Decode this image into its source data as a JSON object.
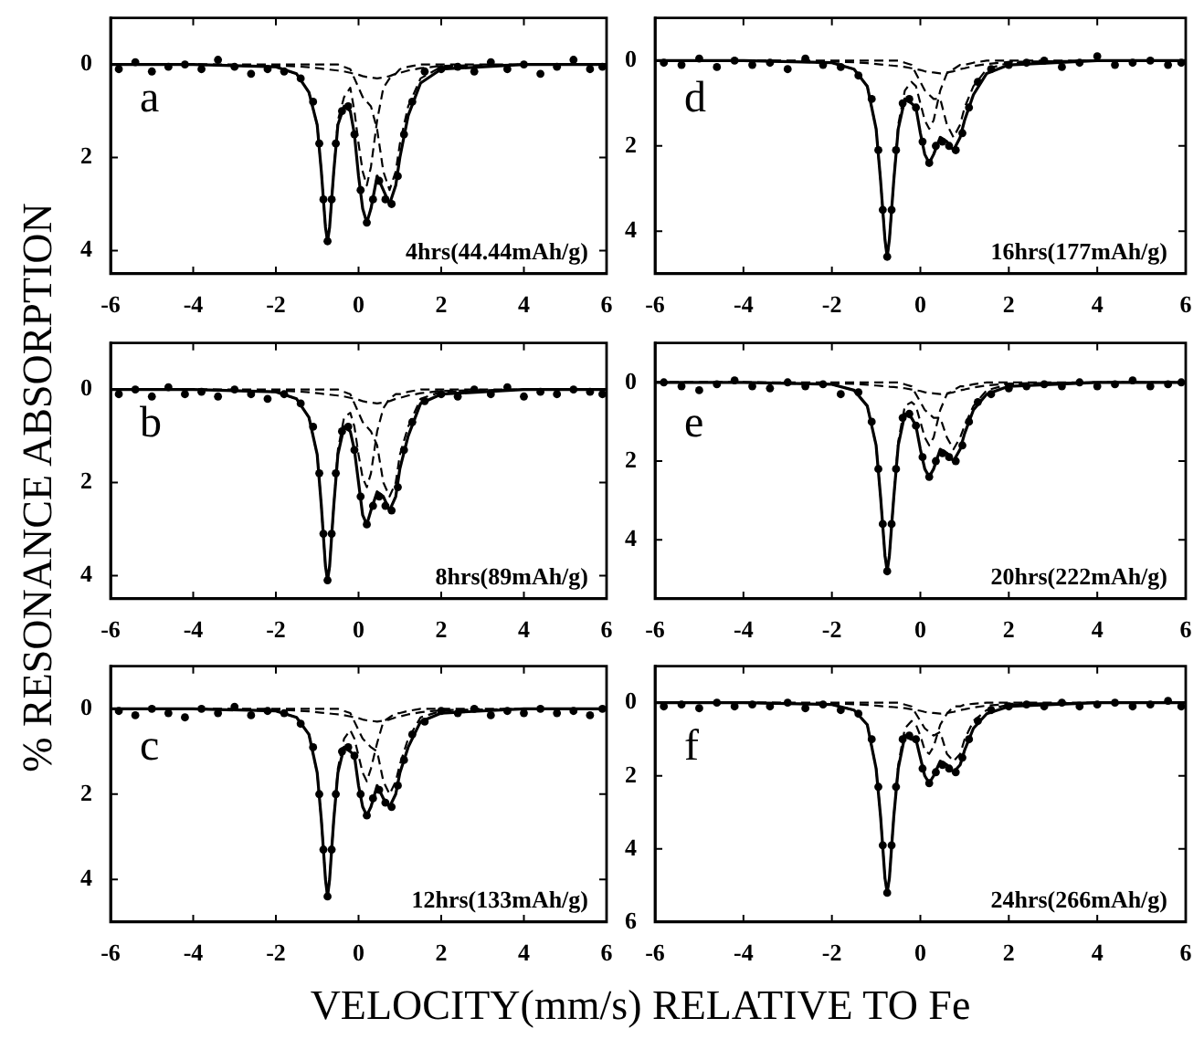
{
  "chart_data": [
    {
      "type": "line",
      "annotations": [
        "a",
        "4hrs(44.44mAh/g)"
      ],
      "xlim": [
        -6,
        6
      ],
      "xticks": [
        -6,
        -4,
        -2,
        0,
        2,
        4,
        6
      ],
      "ylim": [
        4.5,
        -1
      ],
      "yticks": [
        0,
        2,
        4
      ],
      "x": [
        -6,
        -4,
        -2,
        -1.5,
        -1.2,
        -1,
        -0.9,
        -0.8,
        -0.75,
        -0.7,
        -0.6,
        -0.5,
        -0.35,
        -0.2,
        -0.1,
        0,
        0.1,
        0.2,
        0.3,
        0.45,
        0.6,
        0.75,
        0.9,
        1,
        1.2,
        1.5,
        2,
        4,
        6
      ],
      "series": [
        {
          "type": "scatter",
          "marker": "circle",
          "color": "#000000",
          "x": [
            -5.8,
            -5.4,
            -5,
            -4.6,
            -4.2,
            -3.8,
            -3.4,
            -3,
            -2.6,
            -2.2,
            -1.8,
            -1.4,
            -1.1,
            -0.95,
            -0.85,
            -0.75,
            -0.65,
            -0.55,
            -0.4,
            -0.25,
            -0.1,
            0.05,
            0.2,
            0.35,
            0.5,
            0.65,
            0.8,
            0.95,
            1.1,
            1.3,
            1.6,
            2,
            2.4,
            2.8,
            3.2,
            3.6,
            4,
            4.4,
            4.8,
            5.2,
            5.6,
            5.9
          ],
          "values": [
            0.1,
            -0.05,
            0.15,
            0.05,
            0,
            0.1,
            -0.1,
            0.05,
            0.2,
            0.1,
            0.15,
            0.3,
            0.8,
            1.7,
            2.9,
            3.8,
            2.9,
            1.7,
            1.0,
            0.9,
            1.5,
            2.7,
            3.4,
            2.9,
            2.5,
            2.9,
            3.0,
            2.4,
            1.5,
            0.8,
            0.15,
            0.1,
            0.05,
            0.15,
            -0.05,
            0.1,
            0,
            0.2,
            0.05,
            -0.1,
            0.1,
            0.05
          ]
        },
        {
          "line_style": "solid",
          "marker": "none",
          "color": "#000000",
          "values": [
            0,
            0,
            0.05,
            0.2,
            0.6,
            1.3,
            2.3,
            3.5,
            3.8,
            3.5,
            2.3,
            1.3,
            0.9,
            1.0,
            1.5,
            2.4,
            3.1,
            3.4,
            3.1,
            2.4,
            2.7,
            3.0,
            2.6,
            2.0,
            1.1,
            0.4,
            0.1,
            0,
            0
          ]
        },
        {
          "line_style": "dashed",
          "marker": "none",
          "color": "#000000",
          "values": [
            0,
            0,
            0.05,
            0.2,
            0.6,
            1.3,
            2.3,
            3.5,
            3.8,
            3.5,
            2.3,
            1.2,
            0.7,
            0.5,
            1.0,
            1.7,
            2.3,
            2.6,
            2.2,
            1.2,
            0.5,
            0.3,
            0.2,
            0.1,
            0.05,
            0,
            0,
            0,
            0
          ]
        },
        {
          "line_style": "dashed",
          "marker": "none",
          "color": "#000000",
          "values": [
            0,
            0,
            0,
            0,
            0,
            0,
            0,
            0,
            0,
            0,
            0,
            0,
            0.05,
            0.1,
            0.3,
            0.5,
            0.7,
            0.8,
            0.9,
            1.4,
            2.3,
            2.7,
            2.3,
            1.7,
            0.9,
            0.3,
            0.05,
            0,
            0
          ]
        },
        {
          "line_style": "dashed",
          "marker": "none",
          "color": "#000000",
          "values": [
            0,
            0,
            0.02,
            0.04,
            0.06,
            0.08,
            0.09,
            0.1,
            0.1,
            0.11,
            0.12,
            0.13,
            0.15,
            0.18,
            0.2,
            0.22,
            0.25,
            0.27,
            0.28,
            0.3,
            0.28,
            0.25,
            0.2,
            0.18,
            0.13,
            0.08,
            0.03,
            0,
            0
          ]
        }
      ]
    },
    {
      "type": "line",
      "annotations": [
        "d",
        "16hrs(177mAh/g)"
      ],
      "xlim": [
        -6,
        6
      ],
      "xticks": [
        -6,
        -4,
        -2,
        0,
        2,
        4,
        6
      ],
      "ylim": [
        5,
        -1
      ],
      "yticks": [
        0,
        2,
        4
      ],
      "x": [
        -6,
        -4,
        -2,
        -1.5,
        -1.2,
        -1,
        -0.9,
        -0.8,
        -0.75,
        -0.7,
        -0.6,
        -0.5,
        -0.35,
        -0.2,
        -0.1,
        0,
        0.1,
        0.2,
        0.3,
        0.45,
        0.6,
        0.75,
        0.9,
        1,
        1.2,
        1.5,
        2,
        4,
        6
      ],
      "series": [
        {
          "type": "scatter",
          "marker": "circle",
          "color": "#000000",
          "x": [
            -5.8,
            -5.4,
            -5,
            -4.6,
            -4.2,
            -3.8,
            -3.4,
            -3,
            -2.6,
            -2.2,
            -1.8,
            -1.4,
            -1.1,
            -0.95,
            -0.85,
            -0.75,
            -0.65,
            -0.55,
            -0.4,
            -0.25,
            -0.1,
            0.05,
            0.2,
            0.35,
            0.5,
            0.65,
            0.8,
            0.95,
            1.1,
            1.3,
            1.6,
            2,
            2.4,
            2.8,
            3.2,
            3.6,
            4,
            4.4,
            4.8,
            5.2,
            5.6,
            5.9
          ],
          "values": [
            0.05,
            0.1,
            -0.05,
            0.15,
            0,
            0.1,
            0.05,
            0.2,
            -0.05,
            0.1,
            0.15,
            0.35,
            0.9,
            2.1,
            3.5,
            4.6,
            3.5,
            2.1,
            1.0,
            0.9,
            1.1,
            1.9,
            2.4,
            2.0,
            1.9,
            2.0,
            2.1,
            1.7,
            1.1,
            0.5,
            0.2,
            0.1,
            0.05,
            0,
            0.15,
            0.05,
            -0.1,
            0.1,
            0.05,
            0,
            0.1,
            0.05
          ]
        },
        {
          "line_style": "solid",
          "marker": "none",
          "color": "#000000",
          "values": [
            0,
            0,
            0.05,
            0.2,
            0.6,
            1.6,
            2.8,
            4.2,
            4.6,
            4.2,
            2.8,
            1.6,
            0.9,
            1.0,
            1.1,
            1.7,
            2.2,
            2.4,
            2.2,
            1.8,
            1.9,
            2.1,
            1.8,
            1.4,
            0.8,
            0.3,
            0.1,
            0,
            0
          ]
        },
        {
          "line_style": "dashed",
          "marker": "none",
          "color": "#000000",
          "values": [
            0,
            0,
            0.05,
            0.2,
            0.6,
            1.6,
            2.8,
            4.2,
            4.6,
            4.2,
            2.8,
            1.5,
            0.7,
            0.5,
            0.6,
            1.0,
            1.4,
            1.6,
            1.4,
            0.7,
            0.3,
            0.2,
            0.1,
            0.1,
            0.05,
            0,
            0,
            0,
            0
          ]
        },
        {
          "line_style": "dashed",
          "marker": "none",
          "color": "#000000",
          "values": [
            0,
            0,
            0,
            0,
            0,
            0,
            0,
            0,
            0,
            0,
            0,
            0,
            0.05,
            0.1,
            0.3,
            0.5,
            0.7,
            0.8,
            0.9,
            0.9,
            1.5,
            1.8,
            1.5,
            1.1,
            0.6,
            0.2,
            0.05,
            0,
            0
          ]
        },
        {
          "line_style": "dashed",
          "marker": "none",
          "color": "#000000",
          "values": [
            0,
            0,
            0.02,
            0.04,
            0.06,
            0.08,
            0.09,
            0.1,
            0.1,
            0.11,
            0.12,
            0.13,
            0.15,
            0.18,
            0.2,
            0.22,
            0.25,
            0.27,
            0.28,
            0.3,
            0.28,
            0.25,
            0.2,
            0.18,
            0.13,
            0.08,
            0.03,
            0,
            0
          ]
        }
      ]
    },
    {
      "type": "line",
      "ylabel": "% RESONANCE ABSORPTION",
      "annotations": [
        "b",
        "8hrs(89mAh/g)"
      ],
      "xlim": [
        -6,
        6
      ],
      "xticks": [
        -6,
        -4,
        -2,
        0,
        2,
        4,
        6
      ],
      "ylim": [
        4.5,
        -1
      ],
      "yticks": [
        0,
        2,
        4
      ],
      "x": [
        -6,
        -4,
        -2,
        -1.5,
        -1.2,
        -1,
        -0.9,
        -0.8,
        -0.75,
        -0.7,
        -0.6,
        -0.5,
        -0.35,
        -0.2,
        -0.1,
        0,
        0.1,
        0.2,
        0.3,
        0.45,
        0.6,
        0.75,
        0.9,
        1,
        1.2,
        1.5,
        2,
        4,
        6
      ],
      "series": [
        {
          "type": "scatter",
          "marker": "circle",
          "color": "#000000",
          "x": [
            -5.8,
            -5.4,
            -5,
            -4.6,
            -4.2,
            -3.8,
            -3.4,
            -3,
            -2.6,
            -2.2,
            -1.8,
            -1.4,
            -1.1,
            -0.95,
            -0.85,
            -0.75,
            -0.65,
            -0.55,
            -0.4,
            -0.25,
            -0.1,
            0.05,
            0.2,
            0.35,
            0.5,
            0.65,
            0.8,
            0.95,
            1.1,
            1.3,
            1.6,
            2,
            2.4,
            2.8,
            3.2,
            3.6,
            4,
            4.4,
            4.8,
            5.2,
            5.6,
            5.9
          ],
          "values": [
            0.1,
            0,
            0.15,
            -0.05,
            0.1,
            0.05,
            0.15,
            0,
            0.1,
            0.2,
            0.1,
            0.3,
            0.8,
            1.8,
            3.1,
            4.1,
            3.1,
            1.8,
            0.9,
            0.8,
            1.3,
            2.3,
            2.9,
            2.5,
            2.3,
            2.5,
            2.6,
            2.1,
            1.3,
            0.7,
            0.25,
            0.1,
            0.15,
            0,
            0.1,
            -0.05,
            0.15,
            0.05,
            0.1,
            0,
            0.05,
            0.1
          ]
        },
        {
          "line_style": "solid",
          "marker": "none",
          "color": "#000000",
          "values": [
            0,
            0,
            0.05,
            0.2,
            0.6,
            1.4,
            2.5,
            3.8,
            4.1,
            3.8,
            2.5,
            1.4,
            0.8,
            0.9,
            1.3,
            2.0,
            2.7,
            2.9,
            2.6,
            2.2,
            2.3,
            2.6,
            2.3,
            1.7,
            1.0,
            0.3,
            0.1,
            0,
            0
          ]
        },
        {
          "line_style": "dashed",
          "marker": "none",
          "color": "#000000",
          "values": [
            0,
            0,
            0.05,
            0.2,
            0.6,
            1.4,
            2.5,
            3.8,
            4.1,
            3.8,
            2.5,
            1.3,
            0.6,
            0.5,
            0.8,
            1.4,
            1.9,
            2.1,
            1.8,
            0.9,
            0.4,
            0.2,
            0.1,
            0.1,
            0.05,
            0,
            0,
            0,
            0
          ]
        },
        {
          "line_style": "dashed",
          "marker": "none",
          "color": "#000000",
          "values": [
            0,
            0,
            0,
            0,
            0,
            0,
            0,
            0,
            0,
            0,
            0,
            0,
            0.05,
            0.1,
            0.3,
            0.5,
            0.7,
            0.8,
            0.9,
            1.2,
            2.0,
            2.3,
            2.0,
            1.4,
            0.8,
            0.2,
            0.05,
            0,
            0
          ]
        },
        {
          "line_style": "dashed",
          "marker": "none",
          "color": "#000000",
          "values": [
            0,
            0,
            0.02,
            0.04,
            0.06,
            0.08,
            0.09,
            0.1,
            0.1,
            0.11,
            0.12,
            0.13,
            0.15,
            0.18,
            0.2,
            0.22,
            0.25,
            0.27,
            0.28,
            0.3,
            0.28,
            0.25,
            0.2,
            0.18,
            0.13,
            0.08,
            0.03,
            0,
            0
          ]
        }
      ]
    },
    {
      "type": "line",
      "annotations": [
        "e",
        "20hrs(222mAh/g)"
      ],
      "xlim": [
        -6,
        6
      ],
      "xticks": [
        -6,
        -4,
        -2,
        0,
        2,
        4,
        6
      ],
      "ylim": [
        5.5,
        -1
      ],
      "yticks": [
        0,
        2,
        4
      ],
      "x": [
        -6,
        -4,
        -2,
        -1.5,
        -1.2,
        -1,
        -0.9,
        -0.8,
        -0.75,
        -0.7,
        -0.6,
        -0.5,
        -0.35,
        -0.2,
        -0.1,
        0,
        0.1,
        0.2,
        0.3,
        0.45,
        0.6,
        0.75,
        0.9,
        1,
        1.2,
        1.5,
        2,
        4,
        6
      ],
      "series": [
        {
          "type": "scatter",
          "marker": "circle",
          "color": "#000000",
          "x": [
            -5.8,
            -5.4,
            -5,
            -4.6,
            -4.2,
            -3.8,
            -3.4,
            -3,
            -2.6,
            -2.2,
            -1.8,
            -1.4,
            -1.1,
            -0.95,
            -0.85,
            -0.75,
            -0.65,
            -0.55,
            -0.4,
            -0.25,
            -0.1,
            0.05,
            0.2,
            0.35,
            0.5,
            0.65,
            0.8,
            0.95,
            1.1,
            1.3,
            1.6,
            2,
            2.4,
            2.8,
            3.2,
            3.6,
            4,
            4.4,
            4.8,
            5.2,
            5.6,
            5.9
          ],
          "values": [
            0,
            0.1,
            0.2,
            0.05,
            -0.05,
            0.1,
            0.15,
            0,
            0.1,
            0.05,
            0.3,
            0.25,
            1.0,
            2.2,
            3.6,
            4.8,
            3.6,
            2.2,
            0.9,
            0.8,
            1.1,
            1.9,
            2.4,
            2.0,
            1.8,
            1.9,
            2.0,
            1.6,
            1.0,
            0.5,
            0.3,
            0.15,
            0.1,
            0.05,
            0.1,
            0,
            0.1,
            0.05,
            -0.05,
            0.1,
            0.05,
            0
          ]
        },
        {
          "line_style": "solid",
          "marker": "none",
          "color": "#000000",
          "values": [
            0,
            0,
            0.05,
            0.2,
            0.6,
            1.6,
            2.9,
            4.4,
            4.8,
            4.4,
            2.9,
            1.6,
            0.8,
            0.9,
            1.1,
            1.7,
            2.2,
            2.4,
            2.2,
            1.7,
            1.8,
            2.0,
            1.7,
            1.3,
            0.7,
            0.3,
            0.1,
            0,
            0
          ]
        },
        {
          "line_style": "dashed",
          "marker": "none",
          "color": "#000000",
          "values": [
            0,
            0,
            0.05,
            0.2,
            0.6,
            1.6,
            2.9,
            4.4,
            4.8,
            4.4,
            2.9,
            1.5,
            0.6,
            0.5,
            0.6,
            1.0,
            1.4,
            1.6,
            1.4,
            0.7,
            0.3,
            0.2,
            0.1,
            0.1,
            0.05,
            0,
            0,
            0,
            0
          ]
        },
        {
          "line_style": "dashed",
          "marker": "none",
          "color": "#000000",
          "values": [
            0,
            0,
            0,
            0,
            0,
            0,
            0,
            0,
            0,
            0,
            0,
            0,
            0.05,
            0.1,
            0.3,
            0.5,
            0.7,
            0.8,
            0.9,
            0.9,
            1.4,
            1.7,
            1.4,
            1.1,
            0.6,
            0.2,
            0.05,
            0,
            0
          ]
        },
        {
          "line_style": "dashed",
          "marker": "none",
          "color": "#000000",
          "values": [
            0,
            0,
            0.02,
            0.04,
            0.06,
            0.08,
            0.09,
            0.1,
            0.1,
            0.11,
            0.12,
            0.13,
            0.15,
            0.18,
            0.2,
            0.22,
            0.25,
            0.27,
            0.28,
            0.3,
            0.28,
            0.25,
            0.2,
            0.18,
            0.13,
            0.08,
            0.03,
            0,
            0
          ]
        }
      ]
    },
    {
      "type": "line",
      "xlabel": "VELOCITY(mm/s) RELATIVE TO Fe",
      "annotations": [
        "c",
        "12hrs(133mAh/g)"
      ],
      "xlim": [
        -6,
        6
      ],
      "xticks": [
        -6,
        -4,
        -2,
        0,
        2,
        4,
        6
      ],
      "ylim": [
        5,
        -1
      ],
      "yticks": [
        0,
        2,
        4
      ],
      "x": [
        -6,
        -4,
        -2,
        -1.5,
        -1.2,
        -1,
        -0.9,
        -0.8,
        -0.75,
        -0.7,
        -0.6,
        -0.5,
        -0.35,
        -0.2,
        -0.1,
        0,
        0.1,
        0.2,
        0.3,
        0.45,
        0.6,
        0.75,
        0.9,
        1,
        1.2,
        1.5,
        2,
        4,
        6
      ],
      "series": [
        {
          "type": "scatter",
          "marker": "circle",
          "color": "#000000",
          "x": [
            -5.8,
            -5.4,
            -5,
            -4.6,
            -4.2,
            -3.8,
            -3.4,
            -3,
            -2.6,
            -2.2,
            -1.8,
            -1.4,
            -1.1,
            -0.95,
            -0.85,
            -0.75,
            -0.65,
            -0.55,
            -0.4,
            -0.25,
            -0.1,
            0.05,
            0.2,
            0.35,
            0.5,
            0.65,
            0.8,
            0.95,
            1.1,
            1.3,
            1.6,
            2,
            2.4,
            2.8,
            3.2,
            3.6,
            4,
            4.4,
            4.8,
            5.2,
            5.6,
            5.9
          ],
          "values": [
            0.05,
            0.15,
            0,
            0.1,
            0.2,
            0,
            0.1,
            -0.05,
            0.15,
            0.05,
            0.1,
            0.35,
            0.9,
            2.0,
            3.3,
            4.4,
            3.3,
            2.0,
            1.0,
            0.9,
            1.1,
            2.0,
            2.5,
            2.1,
            1.9,
            2.2,
            2.3,
            1.8,
            1.2,
            0.6,
            0.3,
            0.05,
            0.1,
            0,
            0.15,
            0.05,
            0.1,
            0,
            0.1,
            0.05,
            0.15,
            0
          ]
        },
        {
          "line_style": "solid",
          "marker": "none",
          "color": "#000000",
          "values": [
            0,
            0,
            0.05,
            0.2,
            0.6,
            1.5,
            2.6,
            4.0,
            4.4,
            4.0,
            2.6,
            1.5,
            0.9,
            1.0,
            1.1,
            1.8,
            2.3,
            2.5,
            2.3,
            1.8,
            2.1,
            2.3,
            2.0,
            1.5,
            0.9,
            0.3,
            0.1,
            0,
            0
          ]
        },
        {
          "line_style": "dashed",
          "marker": "none",
          "color": "#000000",
          "values": [
            0,
            0,
            0.05,
            0.2,
            0.6,
            1.5,
            2.6,
            4.0,
            4.4,
            4.0,
            2.6,
            1.4,
            0.7,
            0.5,
            0.7,
            1.1,
            1.5,
            1.7,
            1.4,
            0.8,
            0.3,
            0.2,
            0.1,
            0.1,
            0.05,
            0,
            0,
            0,
            0
          ]
        },
        {
          "line_style": "dashed",
          "marker": "none",
          "color": "#000000",
          "values": [
            0,
            0,
            0,
            0,
            0,
            0,
            0,
            0,
            0,
            0,
            0,
            0,
            0.05,
            0.1,
            0.3,
            0.5,
            0.7,
            0.8,
            0.9,
            1.0,
            1.7,
            2.0,
            1.7,
            1.3,
            0.7,
            0.2,
            0.05,
            0,
            0
          ]
        },
        {
          "line_style": "dashed",
          "marker": "none",
          "color": "#000000",
          "values": [
            0,
            0,
            0.02,
            0.04,
            0.06,
            0.08,
            0.09,
            0.1,
            0.1,
            0.11,
            0.12,
            0.13,
            0.15,
            0.18,
            0.2,
            0.22,
            0.25,
            0.27,
            0.28,
            0.3,
            0.28,
            0.25,
            0.2,
            0.18,
            0.13,
            0.08,
            0.03,
            0,
            0
          ]
        }
      ]
    },
    {
      "type": "line",
      "annotations": [
        "f",
        "24hrs(266mAh/g)"
      ],
      "xlim": [
        -6,
        6
      ],
      "xticks": [
        -6,
        -4,
        -2,
        0,
        2,
        4,
        6
      ],
      "ylim": [
        6,
        -1
      ],
      "yticks": [
        0,
        2,
        4,
        6
      ],
      "x": [
        -6,
        -4,
        -2,
        -1.5,
        -1.2,
        -1,
        -0.9,
        -0.8,
        -0.75,
        -0.7,
        -0.6,
        -0.5,
        -0.35,
        -0.2,
        -0.1,
        0,
        0.1,
        0.2,
        0.3,
        0.45,
        0.6,
        0.75,
        0.9,
        1,
        1.2,
        1.5,
        2,
        4,
        6
      ],
      "series": [
        {
          "type": "scatter",
          "marker": "circle",
          "color": "#000000",
          "x": [
            -5.8,
            -5.4,
            -5,
            -4.6,
            -4.2,
            -3.8,
            -3.4,
            -3,
            -2.6,
            -2.2,
            -1.8,
            -1.4,
            -1.1,
            -0.95,
            -0.85,
            -0.75,
            -0.65,
            -0.55,
            -0.4,
            -0.25,
            -0.1,
            0.05,
            0.2,
            0.35,
            0.5,
            0.65,
            0.8,
            0.95,
            1.1,
            1.3,
            1.6,
            2,
            2.4,
            2.8,
            3.2,
            3.6,
            4,
            4.4,
            4.8,
            5.2,
            5.6,
            5.9
          ],
          "values": [
            0.1,
            0.05,
            0.15,
            0,
            0.1,
            0.05,
            0.1,
            0,
            0.15,
            0.05,
            0.2,
            0.3,
            1.0,
            2.3,
            3.9,
            5.2,
            3.9,
            2.3,
            1.0,
            0.9,
            1.0,
            1.8,
            2.2,
            1.9,
            1.7,
            1.8,
            1.9,
            1.5,
            1.0,
            0.5,
            0.2,
            0.1,
            0.05,
            0.1,
            0,
            0.1,
            0.05,
            0,
            0.1,
            0.05,
            -0.05,
            0.1
          ]
        },
        {
          "line_style": "solid",
          "marker": "none",
          "color": "#000000",
          "values": [
            0,
            0,
            0.05,
            0.2,
            0.6,
            1.8,
            3.1,
            4.8,
            5.2,
            4.8,
            3.1,
            1.8,
            0.9,
            1.0,
            1.0,
            1.5,
            2.0,
            2.2,
            2.0,
            1.6,
            1.7,
            1.9,
            1.7,
            1.3,
            0.7,
            0.3,
            0.1,
            0,
            0
          ]
        },
        {
          "line_style": "dashed",
          "marker": "none",
          "color": "#000000",
          "values": [
            0,
            0,
            0.05,
            0.2,
            0.6,
            1.8,
            3.1,
            4.8,
            5.2,
            4.8,
            3.1,
            1.7,
            0.7,
            0.5,
            0.6,
            0.9,
            1.3,
            1.4,
            1.2,
            0.6,
            0.3,
            0.1,
            0.1,
            0.05,
            0.03,
            0,
            0,
            0,
            0
          ]
        },
        {
          "line_style": "dashed",
          "marker": "none",
          "color": "#000000",
          "values": [
            0,
            0,
            0,
            0,
            0,
            0,
            0,
            0,
            0,
            0,
            0,
            0,
            0.05,
            0.1,
            0.3,
            0.5,
            0.7,
            0.8,
            0.9,
            0.8,
            1.4,
            1.6,
            1.4,
            1.0,
            0.5,
            0.2,
            0.05,
            0,
            0
          ]
        },
        {
          "line_style": "dashed",
          "marker": "none",
          "color": "#000000",
          "values": [
            0,
            0,
            0.02,
            0.04,
            0.06,
            0.08,
            0.09,
            0.1,
            0.1,
            0.11,
            0.12,
            0.13,
            0.15,
            0.18,
            0.2,
            0.22,
            0.25,
            0.27,
            0.28,
            0.3,
            0.28,
            0.25,
            0.2,
            0.18,
            0.13,
            0.08,
            0.03,
            0,
            0
          ]
        }
      ]
    }
  ]
}
